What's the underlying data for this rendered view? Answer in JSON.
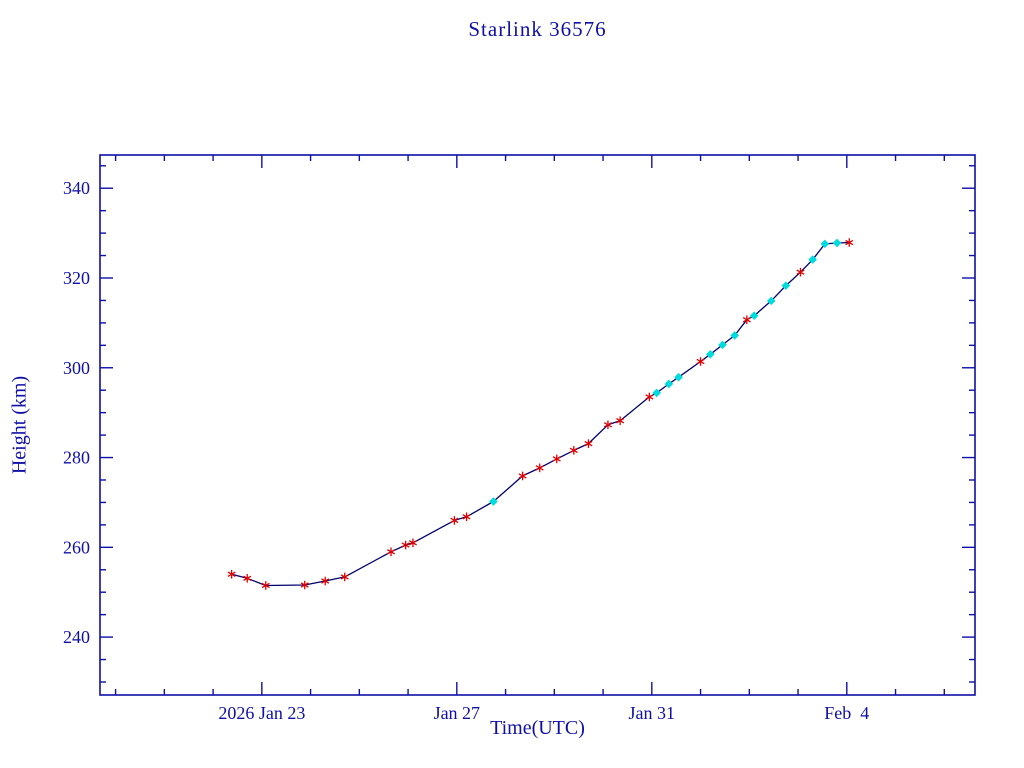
{
  "chart_data": {
    "type": "line",
    "title": "Starlink 36576",
    "xlabel": "Time(UTC)",
    "ylabel": "Height (km)",
    "xlim": [
      19.68,
      37.63
    ],
    "ylim": [
      227.1,
      347.4
    ],
    "x_major_ticks": [
      {
        "value": 23,
        "label": "2026 Jan 23"
      },
      {
        "value": 27,
        "label": "Jan 27"
      },
      {
        "value": 31,
        "label": "Jan 31"
      },
      {
        "value": 35,
        "label": "Feb  4"
      }
    ],
    "x_minor_step": 1,
    "y_major_ticks": [
      240,
      260,
      280,
      300,
      320,
      340
    ],
    "y_minor_step": 5,
    "grid": false,
    "legend": "none",
    "colors": {
      "axis": "#0f0fa8",
      "tick_text": "#0f0fa8",
      "line": "#00006e",
      "marker_red": "#e00000",
      "marker_cyan": "#00dcdc"
    },
    "series_name": "height_km",
    "points": [
      [
        22.38,
        254.0,
        "r"
      ],
      [
        22.7,
        253.1,
        "r"
      ],
      [
        23.08,
        251.5,
        "r"
      ],
      [
        23.88,
        251.6,
        "r"
      ],
      [
        24.3,
        252.5,
        "r"
      ],
      [
        24.7,
        253.4,
        "r"
      ],
      [
        25.65,
        259.0,
        "r"
      ],
      [
        25.95,
        260.5,
        "r"
      ],
      [
        26.1,
        261.0,
        "r"
      ],
      [
        26.95,
        266.0,
        "r"
      ],
      [
        27.2,
        266.8,
        "r"
      ],
      [
        27.75,
        270.2,
        "c"
      ],
      [
        28.35,
        275.9,
        "r"
      ],
      [
        28.7,
        277.7,
        "r"
      ],
      [
        29.05,
        279.7,
        "r"
      ],
      [
        29.4,
        281.6,
        "r"
      ],
      [
        29.7,
        283.1,
        "r"
      ],
      [
        30.1,
        287.3,
        "r"
      ],
      [
        30.35,
        288.2,
        "r"
      ],
      [
        30.95,
        293.5,
        "r"
      ],
      [
        31.1,
        294.4,
        "c"
      ],
      [
        31.35,
        296.4,
        "c"
      ],
      [
        31.55,
        297.9,
        "c"
      ],
      [
        32.0,
        301.4,
        "r"
      ],
      [
        32.2,
        303.0,
        "c"
      ],
      [
        32.45,
        305.1,
        "c"
      ],
      [
        32.7,
        307.2,
        "c"
      ],
      [
        32.95,
        310.7,
        "r"
      ],
      [
        33.1,
        311.6,
        "c"
      ],
      [
        33.45,
        314.9,
        "c"
      ],
      [
        33.75,
        318.3,
        "c"
      ],
      [
        34.05,
        321.3,
        "r"
      ],
      [
        34.3,
        324.1,
        "c"
      ],
      [
        34.55,
        327.6,
        "c"
      ],
      [
        34.8,
        327.8,
        "c"
      ],
      [
        35.05,
        327.9,
        "r"
      ]
    ]
  }
}
